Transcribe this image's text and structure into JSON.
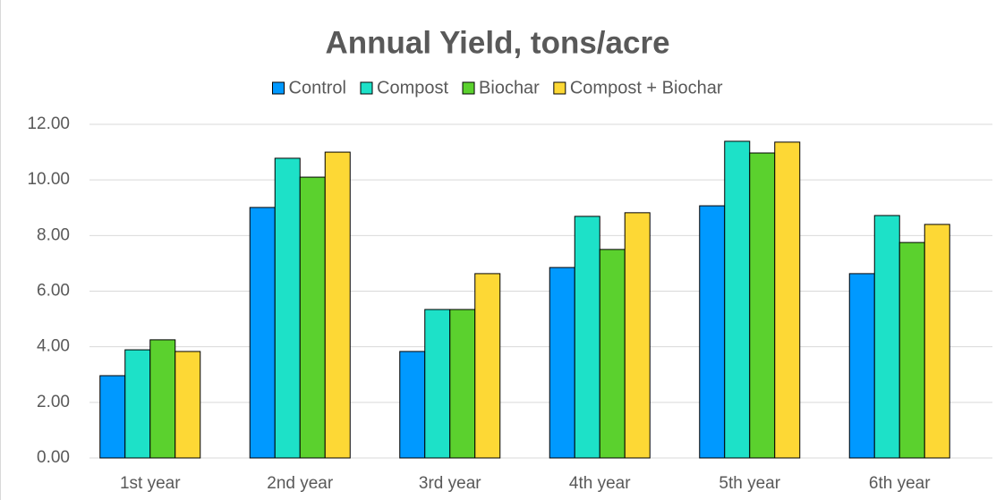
{
  "chart_data": {
    "type": "bar",
    "title": "Annual Yield, tons/acre",
    "categories": [
      "1st year",
      "2nd year",
      "3rd year",
      "4th year",
      "5th year",
      "6th year"
    ],
    "series": [
      {
        "name": "Control",
        "color": "#0099ff",
        "values": [
          2.96,
          9.01,
          3.83,
          6.85,
          9.07,
          6.63
        ]
      },
      {
        "name": "Compost",
        "color": "#1de1c8",
        "values": [
          3.89,
          10.78,
          5.34,
          8.69,
          11.39,
          8.72
        ]
      },
      {
        "name": "Biochar",
        "color": "#5bd12e",
        "values": [
          4.25,
          10.1,
          5.34,
          7.5,
          10.97,
          7.75
        ]
      },
      {
        "name": "Compost + Biochar",
        "color": "#fdd835",
        "values": [
          3.83,
          11.0,
          6.63,
          8.82,
          11.36,
          8.4
        ]
      }
    ],
    "ylim": [
      0,
      12
    ],
    "yticks": [
      {
        "value": 0,
        "label": "0.00"
      },
      {
        "value": 2,
        "label": "2.00"
      },
      {
        "value": 4,
        "label": "4.00"
      },
      {
        "value": 6,
        "label": "6.00"
      },
      {
        "value": 8,
        "label": "8.00"
      },
      {
        "value": 10,
        "label": "10.00"
      },
      {
        "value": 12,
        "label": "12.00"
      }
    ],
    "grid": true,
    "legend": "top"
  }
}
